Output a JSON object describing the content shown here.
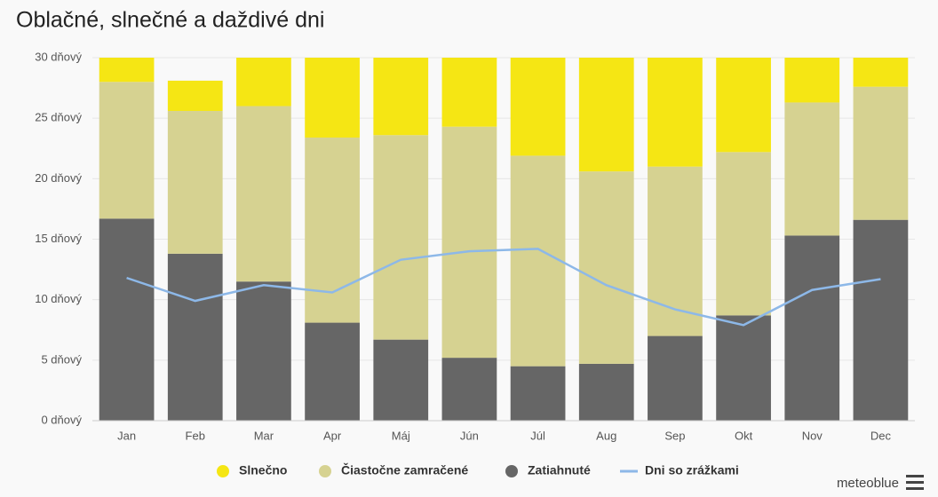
{
  "chart_data": {
    "type": "bar",
    "stacked": true,
    "title": "Oblačné, slnečné a daždivé dni",
    "categories": [
      "Jan",
      "Feb",
      "Mar",
      "Apr",
      "Máj",
      "Jún",
      "Júl",
      "Aug",
      "Sep",
      "Okt",
      "Nov",
      "Dec"
    ],
    "series": [
      {
        "name": "Zatiahnuté",
        "color": "#666666",
        "values": [
          16.7,
          13.8,
          11.5,
          8.1,
          6.7,
          5.2,
          4.5,
          4.7,
          7.0,
          8.7,
          15.3,
          16.6
        ]
      },
      {
        "name": "Čiastočne zamračené",
        "color": "#d6d291",
        "values": [
          11.3,
          11.8,
          14.5,
          15.3,
          16.9,
          19.1,
          17.4,
          15.9,
          14.0,
          13.5,
          11.0,
          11.0
        ]
      },
      {
        "name": "Slnečno",
        "color": "#f5e614",
        "values": [
          2.0,
          2.5,
          4.0,
          6.6,
          6.4,
          5.7,
          8.1,
          9.4,
          9.0,
          7.8,
          3.7,
          2.4
        ]
      },
      {
        "name": "Dni so zrážkami",
        "type": "line",
        "color": "#8db8e8",
        "values": [
          11.8,
          9.9,
          11.2,
          10.6,
          13.3,
          14.0,
          14.2,
          11.2,
          9.2,
          7.9,
          10.8,
          11.7
        ]
      }
    ],
    "legend_order": [
      2,
      1,
      0,
      3
    ],
    "ylim": [
      0,
      30
    ],
    "yticks": [
      {
        "value": 0,
        "label": "0 dňový"
      },
      {
        "value": 5,
        "label": "5 dňový"
      },
      {
        "value": 10,
        "label": "10 dňový"
      },
      {
        "value": 15,
        "label": "15 dňový"
      },
      {
        "value": 20,
        "label": "20 dňový"
      },
      {
        "value": 25,
        "label": "25 dňový"
      },
      {
        "value": 30,
        "label": "30 dňový"
      }
    ],
    "grid": true,
    "credit": "meteoblue"
  }
}
